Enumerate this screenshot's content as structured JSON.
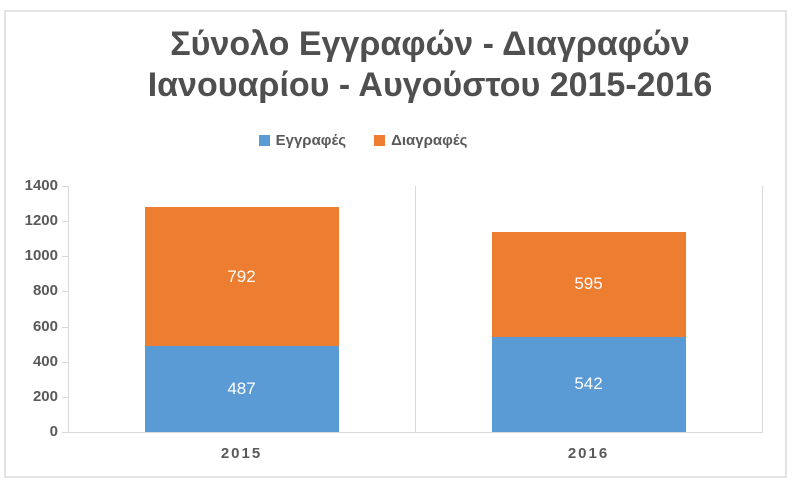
{
  "title": {
    "line1": "Σύνολο Εγγραφών - Διαγραφών",
    "line2": "Ιανουαρίου - Αυγούστου 2015-2016"
  },
  "chart_data": {
    "type": "bar",
    "stacked": true,
    "orientation": "vertical",
    "title": "Σύνολο Εγγραφών - Διαγραφών Ιανουαρίου - Αυγούστου 2015-2016",
    "categories": [
      "2015",
      "2016"
    ],
    "series": [
      {
        "name": "Εγγραφές",
        "color": "#5B9BD5",
        "values": [
          487,
          542
        ]
      },
      {
        "name": "Διαγραφές",
        "color": "#ED7D31",
        "values": [
          792,
          595
        ]
      }
    ],
    "xlabel": "",
    "ylabel": "",
    "ylim": [
      0,
      1400
    ],
    "yticks": [
      0,
      200,
      400,
      600,
      800,
      1000,
      1200,
      1400
    ],
    "grid": "vertical category-boundary gridlines only, no horizontal gridlines",
    "legend_position": "top-center",
    "data_labels": "inside center of each segment, white text"
  },
  "colors": {
    "background": "#FFFFFF",
    "frame_border": "#E4E4E4",
    "title_text": "#4F4F4F",
    "axis_text": "#595959",
    "axis_line": "#D9D9D9",
    "value_label_text": "#FFFFFF"
  }
}
